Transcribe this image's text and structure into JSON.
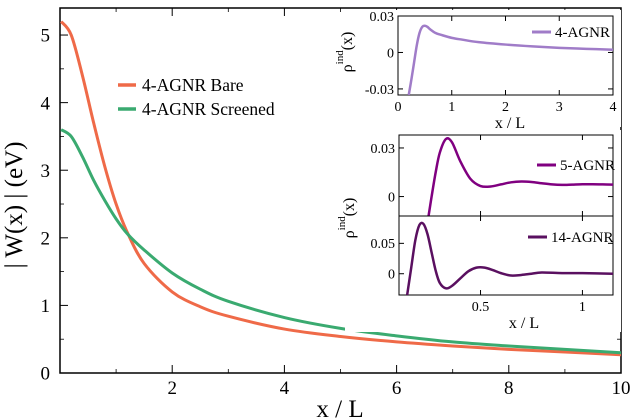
{
  "chart_data": [
    {
      "id": "main",
      "type": "line",
      "xlabel": "x / L",
      "ylabel": "| W(x) | (eV)",
      "xlim": [
        0,
        10
      ],
      "ylim": [
        0,
        5.4
      ],
      "xticks": [
        2,
        4,
        6,
        8,
        10
      ],
      "yticks": [
        0,
        1,
        2,
        3,
        4,
        5
      ],
      "legend_position": "upper-left",
      "series": [
        {
          "name": "4-AGNR Bare",
          "color": "#ef6a48",
          "x": [
            0.02,
            0.2,
            0.4,
            0.6,
            0.8,
            1.0,
            1.2,
            1.5,
            2.0,
            2.5,
            3.0,
            4.0,
            5.0,
            6.0,
            7.0,
            8.0,
            9.0,
            10.0
          ],
          "y": [
            5.2,
            5.0,
            4.4,
            3.7,
            3.05,
            2.5,
            2.08,
            1.62,
            1.2,
            0.98,
            0.84,
            0.65,
            0.54,
            0.46,
            0.4,
            0.35,
            0.31,
            0.27
          ]
        },
        {
          "name": "4-AGNR Screened",
          "color": "#3aaa70",
          "x": [
            0.02,
            0.2,
            0.4,
            0.6,
            0.8,
            1.0,
            1.2,
            1.5,
            2.0,
            2.5,
            3.0,
            4.0,
            5.0,
            6.0,
            7.0,
            8.0,
            9.0,
            10.0
          ],
          "y": [
            3.6,
            3.5,
            3.2,
            2.85,
            2.55,
            2.28,
            2.06,
            1.82,
            1.48,
            1.24,
            1.06,
            0.82,
            0.66,
            0.55,
            0.46,
            0.4,
            0.35,
            0.3
          ]
        }
      ]
    },
    {
      "id": "inset-top",
      "type": "line",
      "xlabel": "x / L",
      "ylabel": "ρ^ind(x)",
      "xlim": [
        0,
        4
      ],
      "ylim": [
        -0.035,
        0.03
      ],
      "xticks": [
        0,
        1,
        2,
        3,
        4
      ],
      "yticks": [
        -0.03,
        0,
        0.03
      ],
      "ytick_labels": [
        "-0.03",
        "0",
        "0.03"
      ],
      "series": [
        {
          "name": "4-AGNR",
          "color": "#a07cc8",
          "x": [
            0.2,
            0.25,
            0.3,
            0.35,
            0.4,
            0.45,
            0.5,
            0.55,
            0.6,
            0.7,
            0.8,
            1.0,
            1.2,
            1.5,
            2.0,
            2.5,
            3.0,
            3.5,
            4.0
          ],
          "y": [
            -0.035,
            -0.022,
            -0.008,
            0.006,
            0.016,
            0.021,
            0.022,
            0.021,
            0.019,
            0.016,
            0.0145,
            0.012,
            0.0105,
            0.0085,
            0.0065,
            0.005,
            0.0038,
            0.003,
            0.0022
          ]
        }
      ]
    },
    {
      "id": "inset-bottom",
      "type": "line",
      "xlabel": "x / L",
      "ylabel": "ρ^ind(x)",
      "shared_x": true,
      "xlim": [
        0.1,
        1.15
      ],
      "xticks": [
        0.5,
        1
      ],
      "xtick_labels": [
        "0.5",
        "1"
      ],
      "panels": [
        {
          "ylim": [
            -0.012,
            0.038
          ],
          "yticks": [
            0,
            0.03
          ],
          "ytick_labels": [
            "0",
            "0.03"
          ],
          "series": [
            {
              "name": "5-AGNR",
              "color": "#800080",
              "x": [
                0.245,
                0.26,
                0.28,
                0.3,
                0.33,
                0.36,
                0.4,
                0.45,
                0.5,
                0.55,
                0.6,
                0.65,
                0.7,
                0.75,
                0.8,
                0.85,
                0.9,
                0.95,
                1.0,
                1.05,
                1.1,
                1.15
              ],
              "y": [
                -0.012,
                0.0,
                0.015,
                0.027,
                0.0355,
                0.0335,
                0.022,
                0.011,
                0.0065,
                0.0062,
                0.0075,
                0.0088,
                0.0093,
                0.009,
                0.0082,
                0.0075,
                0.0072,
                0.0074,
                0.0076,
                0.0076,
                0.0075,
                0.0074
              ]
            }
          ]
        },
        {
          "ylim": [
            -0.035,
            0.095
          ],
          "yticks": [
            0,
            0.05
          ],
          "ytick_labels": [
            "0",
            "0.05"
          ],
          "series": [
            {
              "name": "14-AGNR",
              "color": "#5a1060",
              "x": [
                0.14,
                0.16,
                0.18,
                0.2,
                0.22,
                0.24,
                0.26,
                0.28,
                0.3,
                0.33,
                0.36,
                0.4,
                0.44,
                0.48,
                0.52,
                0.56,
                0.6,
                0.65,
                0.7,
                0.75,
                0.8,
                0.9,
                1.0,
                1.15
              ],
              "y": [
                -0.035,
                0.01,
                0.055,
                0.08,
                0.082,
                0.065,
                0.035,
                0.005,
                -0.015,
                -0.024,
                -0.02,
                -0.008,
                0.004,
                0.01,
                0.01,
                0.006,
                0.001,
                -0.003,
                -0.002,
                0.0,
                0.002,
                0.001,
                0.001,
                0.0
              ]
            }
          ]
        }
      ]
    }
  ]
}
